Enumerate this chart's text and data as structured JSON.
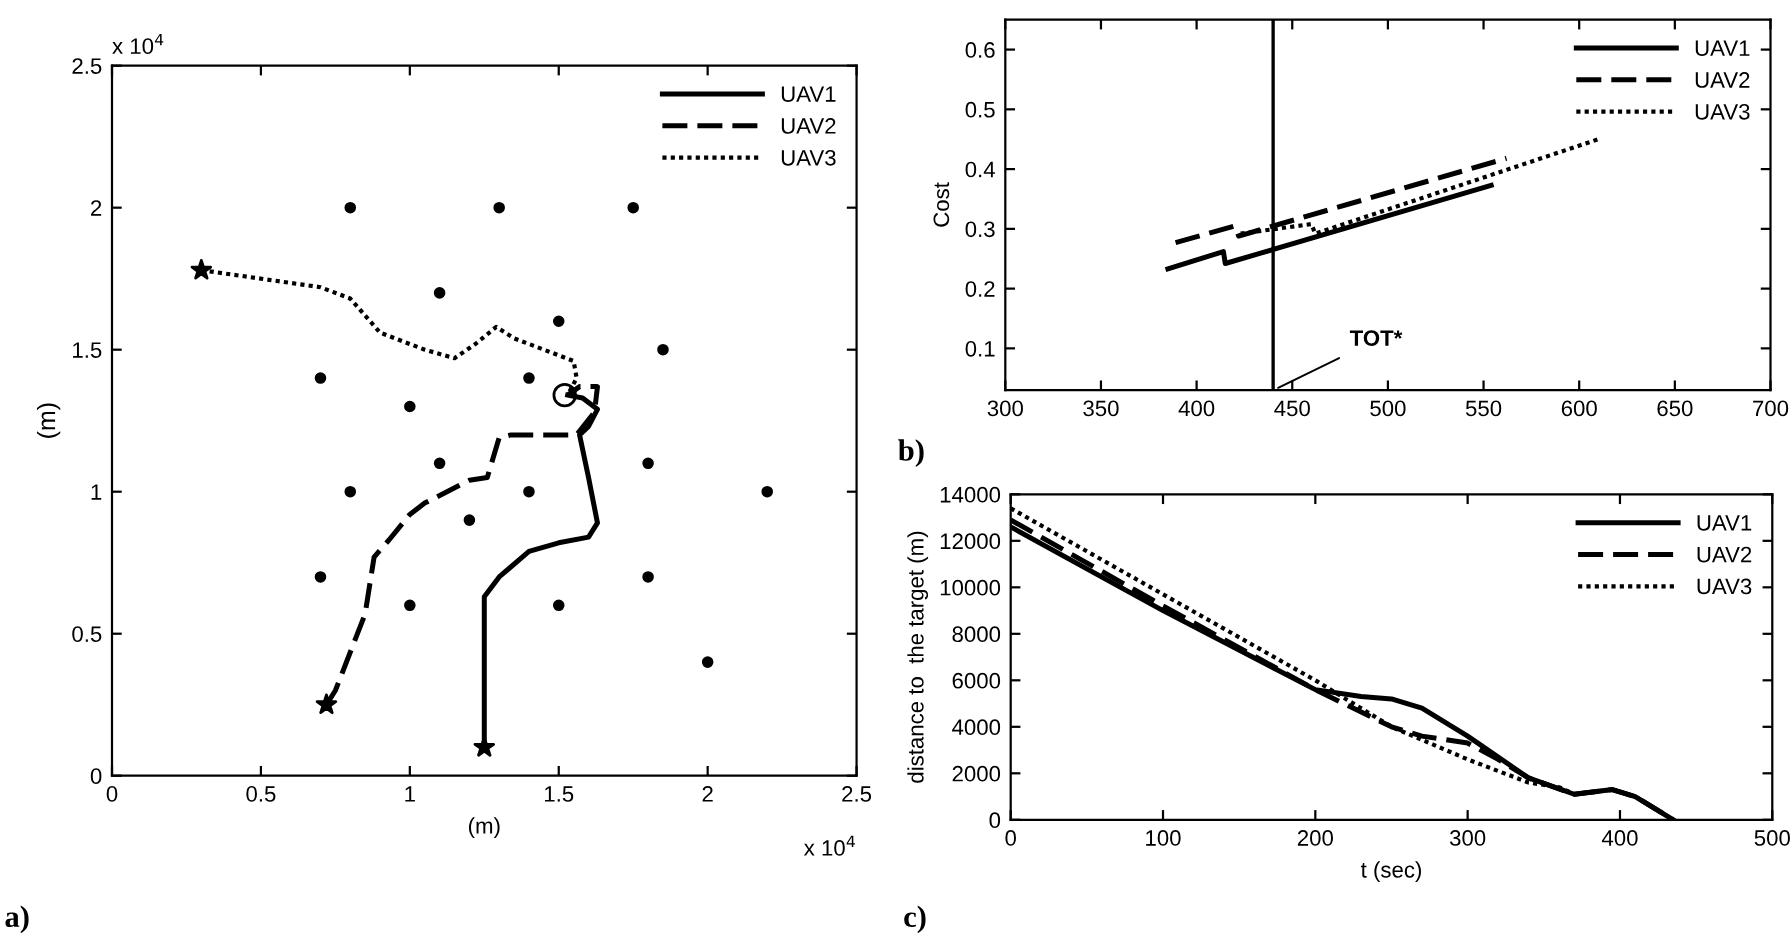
{
  "chart_data": [
    {
      "type": "line",
      "xlabel": "(m)",
      "ylabel": "(m)",
      "xlim": [
        0,
        2.5
      ],
      "ylim": [
        0,
        2.5
      ],
      "xticks": [
        0,
        0.5,
        1,
        1.5,
        2,
        2.5
      ],
      "yticks": [
        0,
        0.5,
        1,
        1.5,
        2,
        2.5
      ],
      "annotations": [
        "a)",
        "x 10$^{4}$",
        "x 10$^{4}$"
      ],
      "legend": "top right",
      "grid": false,
      "series": [
        {
          "type": "scatter",
          "marker": "circle",
          "color": "#000000",
          "x": [
            0.8,
            1.3,
            1.75,
            1.1,
            1.5,
            1.85,
            0.7,
            1.4,
            1.0,
            1.1,
            1.8,
            0.8,
            1.4,
            2.2,
            1.2,
            0.7,
            1.8,
            1.0,
            1.5,
            2.0
          ],
          "values": [
            2.0,
            2.0,
            2.0,
            1.7,
            1.6,
            1.5,
            1.4,
            1.4,
            1.3,
            1.1,
            1.1,
            1.0,
            1.0,
            1.0,
            0.9,
            0.7,
            0.7,
            0.6,
            0.6,
            0.4
          ]
        },
        {
          "name": "UAV1",
          "type": "line",
          "line_style": "solid",
          "color": "#000000",
          "x": [
            1.25,
            1.25,
            1.3,
            1.4,
            1.5,
            1.6,
            1.63,
            1.6,
            1.57,
            1.6,
            1.63,
            1.58,
            1.53
          ],
          "values": [
            0.1,
            0.63,
            0.7,
            0.79,
            0.82,
            0.84,
            0.89,
            1.05,
            1.2,
            1.23,
            1.29,
            1.33,
            1.34
          ]
        },
        {
          "name": "UAV2",
          "type": "line",
          "line_style": "dashed",
          "color": "#000000",
          "x": [
            0.72,
            0.75,
            0.85,
            0.88,
            0.93,
            1.0,
            1.05,
            1.2,
            1.26,
            1.3,
            1.34,
            1.56,
            1.62,
            1.63,
            1.57,
            1.53
          ],
          "values": [
            0.25,
            0.3,
            0.57,
            0.77,
            0.83,
            0.92,
            0.96,
            1.04,
            1.05,
            1.19,
            1.2,
            1.2,
            1.28,
            1.37,
            1.37,
            1.34
          ]
        },
        {
          "name": "UAV3",
          "type": "line",
          "line_style": "dotted",
          "color": "#000000",
          "x": [
            0.3,
            0.7,
            0.8,
            0.9,
            1.05,
            1.15,
            1.22,
            1.29,
            1.35,
            1.45,
            1.55,
            1.56,
            1.53
          ],
          "values": [
            1.78,
            1.72,
            1.68,
            1.56,
            1.5,
            1.47,
            1.52,
            1.58,
            1.54,
            1.5,
            1.46,
            1.4,
            1.34
          ]
        },
        {
          "type": "scatter",
          "marker": "star",
          "color": "#000000",
          "x": [
            1.25,
            0.72,
            0.3
          ],
          "values": [
            0.1,
            0.25,
            1.78
          ]
        },
        {
          "type": "scatter",
          "marker": "hollow circle",
          "color": "#000000",
          "x": [
            1.52
          ],
          "values": [
            1.34
          ]
        }
      ]
    },
    {
      "type": "line",
      "ylabel": "Cost",
      "xlim": [
        300,
        700
      ],
      "ylim": [
        0.03,
        0.65
      ],
      "xticks": [
        300,
        350,
        400,
        450,
        500,
        550,
        600,
        650,
        700
      ],
      "yticks": [
        0.1,
        0.2,
        0.3,
        0.4,
        0.5,
        0.6
      ],
      "annotations": [
        "b)"
      ],
      "legend": "top right",
      "grid": false,
      "ref_lines": [
        {
          "axis": "x",
          "value": 440,
          "label": "TOT*",
          "color": "#000000"
        }
      ],
      "series": [
        {
          "name": "UAV1",
          "line_style": "solid",
          "color": "#000000",
          "x": [
            385,
            414,
            415,
            554
          ],
          "values": [
            0.233,
            0.262,
            0.242,
            0.373
          ]
        },
        {
          "name": "UAV2",
          "line_style": "dashed",
          "color": "#000000",
          "x": [
            389,
            420,
            422,
            562
          ],
          "values": [
            0.277,
            0.305,
            0.288,
            0.418
          ]
        },
        {
          "name": "UAV3",
          "line_style": "dotted",
          "color": "#000000",
          "x": [
            423,
            460,
            462,
            611
          ],
          "values": [
            0.292,
            0.308,
            0.292,
            0.451
          ]
        }
      ]
    },
    {
      "type": "line",
      "xlabel": "t (sec)",
      "ylabel": "distance to  the target (m)",
      "xlim": [
        0,
        500
      ],
      "ylim": [
        0,
        14000
      ],
      "xticks": [
        0,
        100,
        200,
        300,
        400,
        500
      ],
      "yticks": [
        0,
        2000,
        4000,
        6000,
        8000,
        10000,
        12000,
        14000
      ],
      "annotations": [
        "c)"
      ],
      "legend": "top right",
      "grid": false,
      "series": [
        {
          "name": "UAV1",
          "line_style": "solid",
          "color": "#000000",
          "x": [
            0,
            100,
            200,
            230,
            250,
            270,
            300,
            340,
            370,
            395,
            410,
            435
          ],
          "values": [
            12600,
            9000,
            5600,
            5300,
            5200,
            4800,
            3600,
            1800,
            1100,
            1300,
            1000,
            0
          ]
        },
        {
          "name": "UAV2",
          "line_style": "dashed",
          "color": "#000000",
          "x": [
            0,
            100,
            200,
            250,
            270,
            300,
            320,
            340,
            370,
            395,
            410,
            435
          ],
          "values": [
            12900,
            9200,
            5600,
            4000,
            3600,
            3300,
            2600,
            1800,
            1100,
            1300,
            1000,
            0
          ]
        },
        {
          "name": "UAV3",
          "line_style": "dotted",
          "color": "#000000",
          "x": [
            0,
            100,
            200,
            250,
            300,
            340,
            360,
            370,
            395,
            410,
            435
          ],
          "values": [
            13400,
            9700,
            6000,
            4000,
            2600,
            1600,
            1400,
            1100,
            1300,
            1000,
            0
          ]
        }
      ]
    }
  ]
}
